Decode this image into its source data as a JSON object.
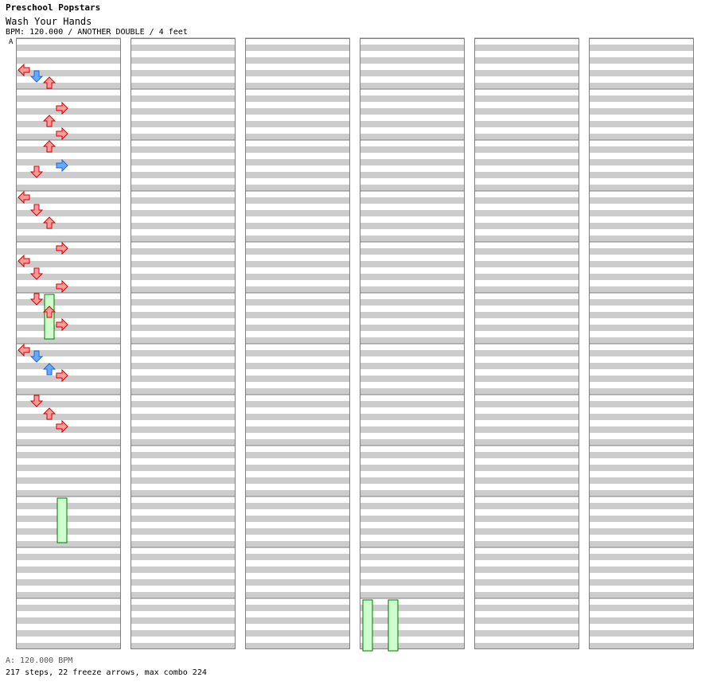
{
  "song": {
    "group": "Preschool Popstars",
    "title": "Wash Your Hands",
    "meta_line": "BPM: 120.000 / ANOTHER DOUBLE / 4 feet"
  },
  "bpm_marker": "A",
  "footer": {
    "bpm_line": "A: 120.000 BPM",
    "stats_line": "217 steps, 22 freeze arrows, max combo 224"
  },
  "colors": {
    "quarter_note": "#ff9999",
    "quarter_border": "#cc0000",
    "eighth_note": "#66aaff",
    "eighth_border": "#2266cc",
    "freeze_fill": "#ccffcc",
    "freeze_border": "#007700",
    "stripe": "#cccccc",
    "grid_line": "#808080"
  },
  "chart_data": {
    "type": "step_chart",
    "style": "ANOTHER DOUBLE",
    "bpm": 120,
    "lanes": [
      "P1-left",
      "P1-down",
      "P1-up",
      "P1-right",
      "P2-left",
      "P2-down",
      "P2-up",
      "P2-right"
    ],
    "measures_per_column": 12,
    "total_measures": 72,
    "beat_unit": "quarter-note beats from measure 1",
    "notes": [
      {
        "m": 1,
        "b": 2.0,
        "lane": 0,
        "c": "r"
      },
      {
        "m": 1,
        "b": 2.5,
        "lane": 1,
        "c": "b"
      },
      {
        "m": 1,
        "b": 3.0,
        "lane": 2,
        "c": "r"
      },
      {
        "m": 2,
        "b": 1.0,
        "lane": 3,
        "c": "r"
      },
      {
        "m": 2,
        "b": 2.0,
        "lane": 2,
        "c": "r"
      },
      {
        "m": 2,
        "b": 3.0,
        "lane": 3,
        "c": "r"
      },
      {
        "m": 3,
        "b": 0.0,
        "lane": 2,
        "c": "r"
      },
      {
        "m": 3,
        "b": 1.5,
        "lane": 3,
        "c": "b"
      },
      {
        "m": 3,
        "b": 2.0,
        "lane": 1,
        "c": "r"
      },
      {
        "m": 4,
        "b": 0.0,
        "lane": 0,
        "c": "r"
      },
      {
        "m": 4,
        "b": 1.0,
        "lane": 1,
        "c": "r"
      },
      {
        "m": 4,
        "b": 2.0,
        "lane": 2,
        "c": "r"
      },
      {
        "m": 5,
        "b": 0.0,
        "lane": 3,
        "c": "r"
      },
      {
        "m": 5,
        "b": 1.0,
        "lane": 0,
        "c": "r"
      },
      {
        "m": 5,
        "b": 2.0,
        "lane": 1,
        "c": "r"
      },
      {
        "m": 5,
        "b": 3.0,
        "lane": 3,
        "c": "r"
      },
      {
        "m": 6,
        "b": 0.0,
        "lane": 1,
        "c": "r"
      },
      {
        "m": 6,
        "b": 1.0,
        "lane": 2,
        "c": "r"
      },
      {
        "m": 6,
        "b": 2.0,
        "lane": 3,
        "c": "r"
      },
      {
        "m": 7,
        "b": 0.0,
        "lane": 0,
        "c": "r"
      },
      {
        "m": 7,
        "b": 0.5,
        "lane": 1,
        "c": "b"
      },
      {
        "m": 7,
        "b": 1.5,
        "lane": 2,
        "c": "b"
      },
      {
        "m": 7,
        "b": 2.0,
        "lane": 3,
        "c": "r"
      },
      {
        "m": 8,
        "b": 0.0,
        "lane": 1,
        "c": "r"
      },
      {
        "m": 8,
        "b": 1.0,
        "lane": 2,
        "c": "r"
      },
      {
        "m": 8,
        "b": 2.0,
        "lane": 3,
        "c": "r"
      }
    ],
    "freezes": [
      {
        "m": 6,
        "b": 0.0,
        "lane": 2,
        "len_beats": 3.5
      },
      {
        "m": 10,
        "b": 0.0,
        "lane": 3,
        "len_beats": 3.5
      },
      {
        "m": 48,
        "b": 0.0,
        "lane": 0,
        "len_beats": 4.0
      },
      {
        "m": 48,
        "b": 0.0,
        "lane": 2,
        "len_beats": 4.0
      }
    ]
  }
}
